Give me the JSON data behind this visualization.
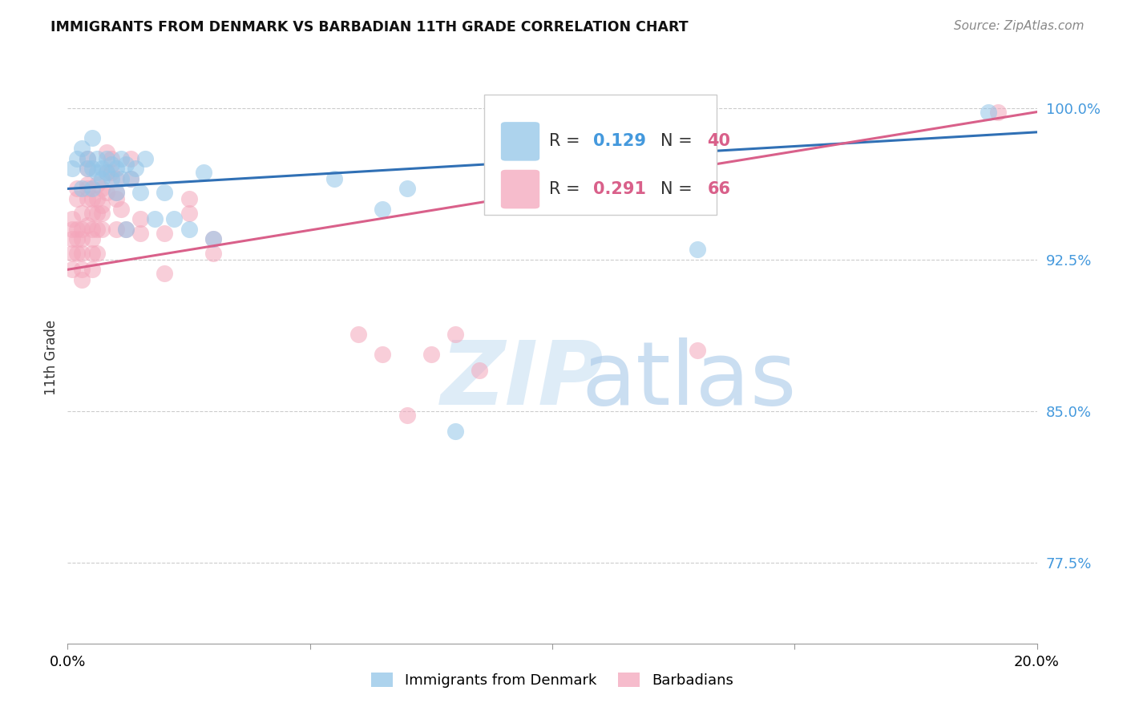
{
  "title": "IMMIGRANTS FROM DENMARK VS BARBADIAN 11TH GRADE CORRELATION CHART",
  "source": "Source: ZipAtlas.com",
  "ylabel": "11th Grade",
  "right_yticks": [
    "77.5%",
    "85.0%",
    "92.5%",
    "100.0%"
  ],
  "right_ytick_vals": [
    0.775,
    0.85,
    0.925,
    1.0
  ],
  "denmark_color": "#92c5e8",
  "barbadian_color": "#f4a6bb",
  "denmark_line_color": "#3070b5",
  "barbadian_line_color": "#d9608a",
  "xlim": [
    0.0,
    0.2
  ],
  "ylim": [
    0.735,
    1.018
  ],
  "denmark_scatter_x": [
    0.001,
    0.002,
    0.003,
    0.003,
    0.004,
    0.004,
    0.005,
    0.005,
    0.005,
    0.006,
    0.006,
    0.007,
    0.007,
    0.008,
    0.008,
    0.009,
    0.009,
    0.01,
    0.01,
    0.011,
    0.011,
    0.012,
    0.012,
    0.013,
    0.014,
    0.015,
    0.016,
    0.018,
    0.02,
    0.022,
    0.025,
    0.028,
    0.03,
    0.055,
    0.065,
    0.07,
    0.08,
    0.09,
    0.13,
    0.19
  ],
  "denmark_scatter_y": [
    0.97,
    0.975,
    0.98,
    0.96,
    0.97,
    0.975,
    0.985,
    0.97,
    0.96,
    0.975,
    0.968,
    0.97,
    0.965,
    0.975,
    0.968,
    0.972,
    0.965,
    0.97,
    0.958,
    0.975,
    0.965,
    0.972,
    0.94,
    0.965,
    0.97,
    0.958,
    0.975,
    0.945,
    0.958,
    0.945,
    0.94,
    0.968,
    0.935,
    0.965,
    0.95,
    0.96,
    0.84,
    0.96,
    0.93,
    0.998
  ],
  "barbadian_scatter_x": [
    0.001,
    0.001,
    0.001,
    0.001,
    0.001,
    0.002,
    0.002,
    0.002,
    0.002,
    0.002,
    0.003,
    0.003,
    0.003,
    0.003,
    0.003,
    0.003,
    0.004,
    0.004,
    0.004,
    0.004,
    0.004,
    0.004,
    0.005,
    0.005,
    0.005,
    0.005,
    0.005,
    0.005,
    0.006,
    0.006,
    0.006,
    0.006,
    0.006,
    0.007,
    0.007,
    0.007,
    0.007,
    0.008,
    0.008,
    0.008,
    0.009,
    0.009,
    0.01,
    0.01,
    0.01,
    0.01,
    0.011,
    0.012,
    0.013,
    0.013,
    0.015,
    0.015,
    0.02,
    0.02,
    0.025,
    0.025,
    0.03,
    0.03,
    0.06,
    0.065,
    0.07,
    0.075,
    0.08,
    0.085,
    0.13,
    0.192
  ],
  "barbadian_scatter_y": [
    0.94,
    0.935,
    0.928,
    0.92,
    0.945,
    0.955,
    0.94,
    0.935,
    0.928,
    0.96,
    0.948,
    0.94,
    0.935,
    0.928,
    0.92,
    0.915,
    0.96,
    0.955,
    0.97,
    0.975,
    0.962,
    0.942,
    0.955,
    0.948,
    0.94,
    0.935,
    0.928,
    0.92,
    0.955,
    0.948,
    0.962,
    0.94,
    0.928,
    0.948,
    0.96,
    0.952,
    0.94,
    0.968,
    0.978,
    0.958,
    0.975,
    0.968,
    0.94,
    0.955,
    0.965,
    0.958,
    0.95,
    0.94,
    0.975,
    0.965,
    0.938,
    0.945,
    0.938,
    0.918,
    0.948,
    0.955,
    0.935,
    0.928,
    0.888,
    0.878,
    0.848,
    0.878,
    0.888,
    0.87,
    0.88,
    0.998
  ],
  "denmark_line_x": [
    0.0,
    0.2
  ],
  "denmark_line_y": [
    0.96,
    0.988
  ],
  "barbadian_line_x": [
    0.0,
    0.2
  ],
  "barbadian_line_y": [
    0.92,
    0.998
  ]
}
